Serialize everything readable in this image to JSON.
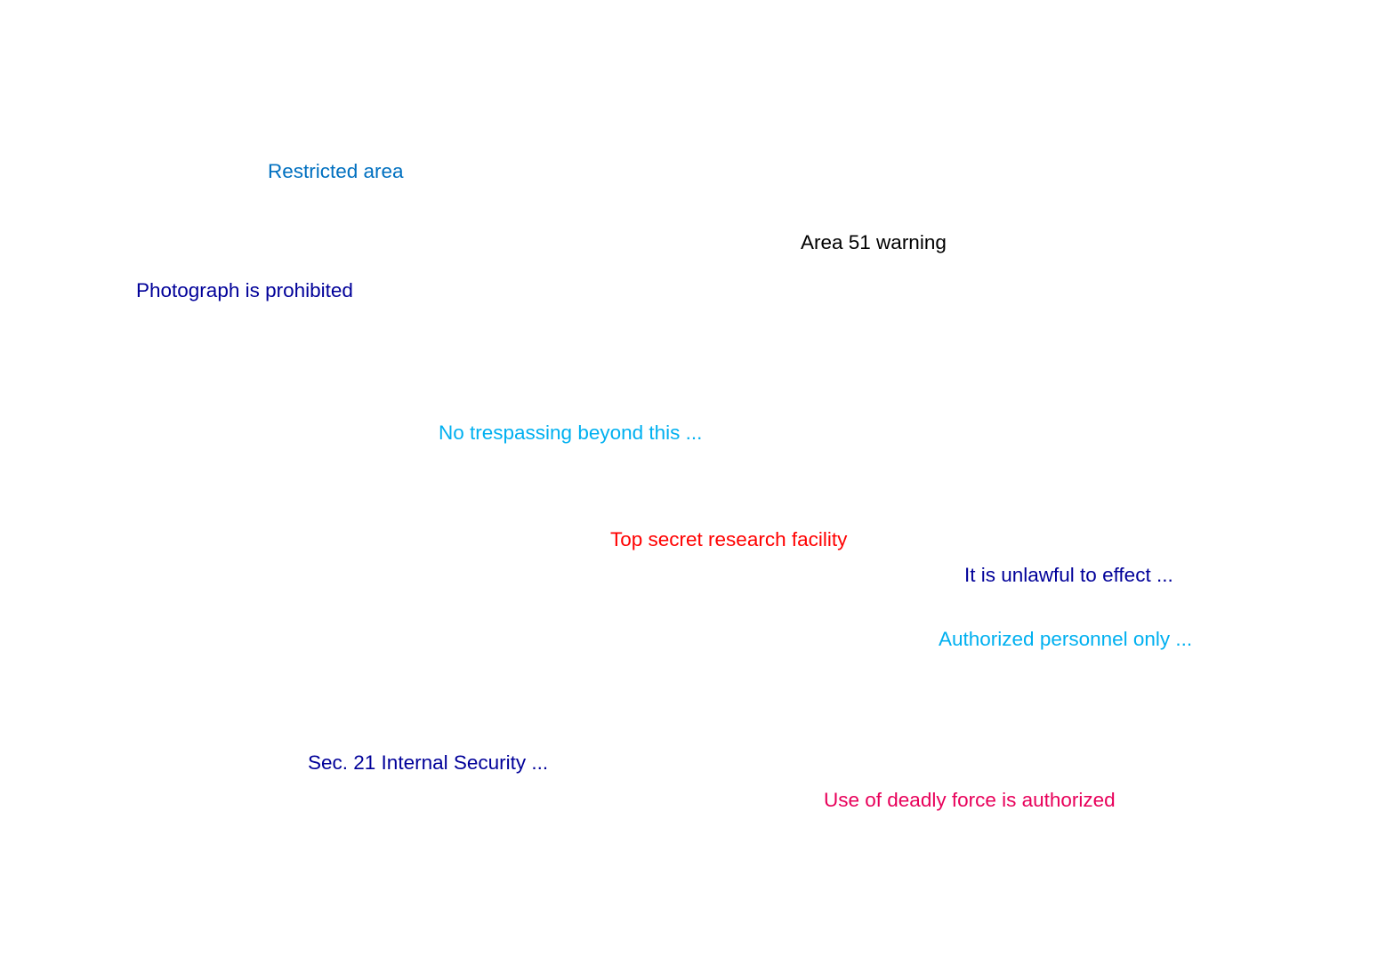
{
  "nodes": [
    {
      "key": "restricted",
      "text": "Restricted area",
      "color": "#0070C0"
    },
    {
      "key": "area51",
      "text": "Area 51 warning",
      "color": "#000000"
    },
    {
      "key": "photograph",
      "text": "Photograph is prohibited",
      "color": "#000099"
    },
    {
      "key": "trespassing",
      "text": "No trespassing beyond this ...",
      "color": "#00B0F0"
    },
    {
      "key": "topsecret",
      "text": "Top secret research facility",
      "color": "#FF0000"
    },
    {
      "key": "unlawful",
      "text": "It is unlawful to effect ...",
      "color": "#000099"
    },
    {
      "key": "authorized",
      "text": "Authorized personnel only ...",
      "color": "#00B0F0"
    },
    {
      "key": "sec21",
      "text": "Sec. 21 Internal Security ...",
      "color": "#000099"
    },
    {
      "key": "deadlyforce",
      "text": "Use of deadly force is authorized",
      "color": "#E8005A"
    }
  ]
}
